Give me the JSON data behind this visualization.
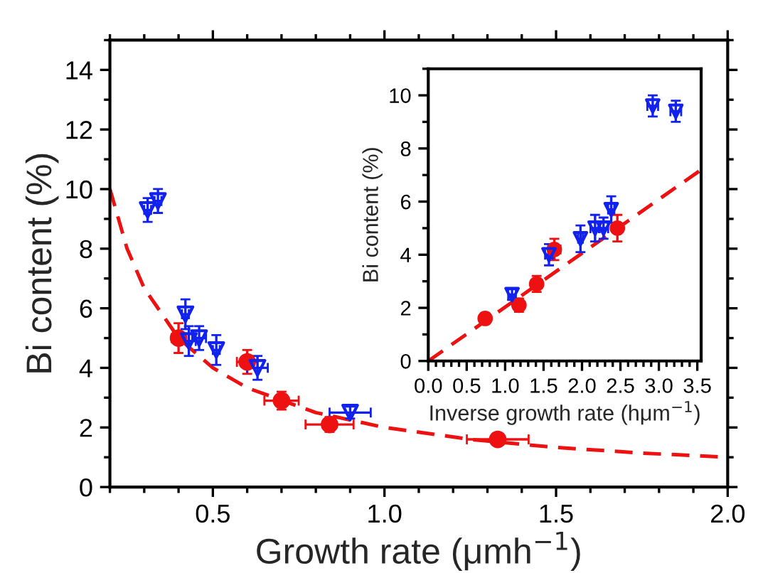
{
  "chart_data": [
    {
      "type": "scatter",
      "xlabel": "Growth rate (μmh$^{−1}$)",
      "ylabel": "Bi content (%)",
      "xlim": [
        0.2,
        2.0
      ],
      "ylim": [
        0,
        15
      ],
      "xticks": [
        0.5,
        {
          "value": 1.0,
          "label": "1.0"
        },
        1.5,
        {
          "value": 2.0,
          "label": "2.0"
        }
      ],
      "yticks": [
        0,
        2,
        4,
        6,
        8,
        10,
        12,
        14
      ],
      "grid": false,
      "legend": false,
      "series": [
        {
          "marker": "circle",
          "color": "#ee1111",
          "x": [
            0.4,
            0.6,
            0.7,
            0.84,
            1.33
          ],
          "values": [
            5.0,
            4.2,
            2.9,
            2.1,
            1.6
          ],
          "errors": [
            0.5,
            0.4,
            0.3,
            0.25,
            0.2
          ],
          "xerrors": [
            0.02,
            0.03,
            0.05,
            0.07,
            0.09
          ]
        },
        {
          "marker": "triangle",
          "color": "#1122ee",
          "x": [
            0.31,
            0.34,
            0.42,
            0.43,
            0.46,
            0.51,
            0.63,
            0.9
          ],
          "values": [
            9.3,
            9.6,
            5.8,
            4.9,
            5.0,
            4.6,
            4.0,
            2.5
          ],
          "errors": [
            0.4,
            0.4,
            0.5,
            0.5,
            0.4,
            0.5,
            0.4,
            0.2
          ],
          "xerrors": [
            0.01,
            0.01,
            0.01,
            0.02,
            0.02,
            0.01,
            0.03,
            0.06
          ]
        },
        {
          "type": "line",
          "line_style": "dashed",
          "color": "#ee1111",
          "x": [
            0.2,
            0.25,
            0.3,
            0.4,
            0.5,
            0.6,
            0.8,
            1.0,
            1.25,
            1.5,
            1.75,
            2.0
          ],
          "values": [
            10,
            8,
            6.67,
            5,
            4,
            3.33,
            2.5,
            2,
            1.6,
            1.33,
            1.14,
            1
          ]
        }
      ]
    },
    {
      "type": "scatter",
      "xlabel": "Inverse growth rate (hμm$^{−1}$)",
      "ylabel": "Bi content (%)",
      "xlim": [
        0,
        3.55
      ],
      "ylim": [
        0,
        11
      ],
      "xticks": [
        {
          "value": 0,
          "label": "0.0"
        },
        0.5,
        {
          "value": 1,
          "label": "1.0"
        },
        1.5,
        {
          "value": 2,
          "label": "2.0"
        },
        2.5,
        {
          "value": 3,
          "label": "3.0"
        },
        3.5
      ],
      "yticks": [
        0,
        2,
        4,
        6,
        8,
        10
      ],
      "grid": false,
      "legend": false,
      "series": [
        {
          "marker": "circle",
          "color": "#ee1111",
          "x": [
            0.74,
            1.18,
            1.41,
            1.64,
            2.46
          ],
          "values": [
            1.6,
            2.1,
            2.9,
            4.2,
            5.0
          ],
          "errors": [
            0.2,
            0.25,
            0.3,
            0.4,
            0.5
          ],
          "xerrors": [
            0.05,
            0.05,
            0.07,
            0.08,
            0.06
          ]
        },
        {
          "marker": "triangle",
          "color": "#1122ee",
          "x": [
            1.09,
            1.57,
            1.98,
            2.17,
            2.28,
            2.38,
            2.92,
            3.22
          ],
          "values": [
            2.5,
            4.0,
            4.6,
            5.0,
            5.0,
            5.7,
            9.6,
            9.4
          ],
          "errors": [
            0.2,
            0.4,
            0.5,
            0.5,
            0.4,
            0.5,
            0.4,
            0.4
          ],
          "xerrors": [
            0.05,
            0.05,
            0.03,
            0.06,
            0.06,
            0.04,
            0.07,
            0.07
          ]
        },
        {
          "type": "line",
          "line_style": "dashed",
          "color": "#ee1111",
          "x": [
            0,
            3.55
          ],
          "values": [
            0,
            7.2
          ]
        }
      ]
    }
  ]
}
